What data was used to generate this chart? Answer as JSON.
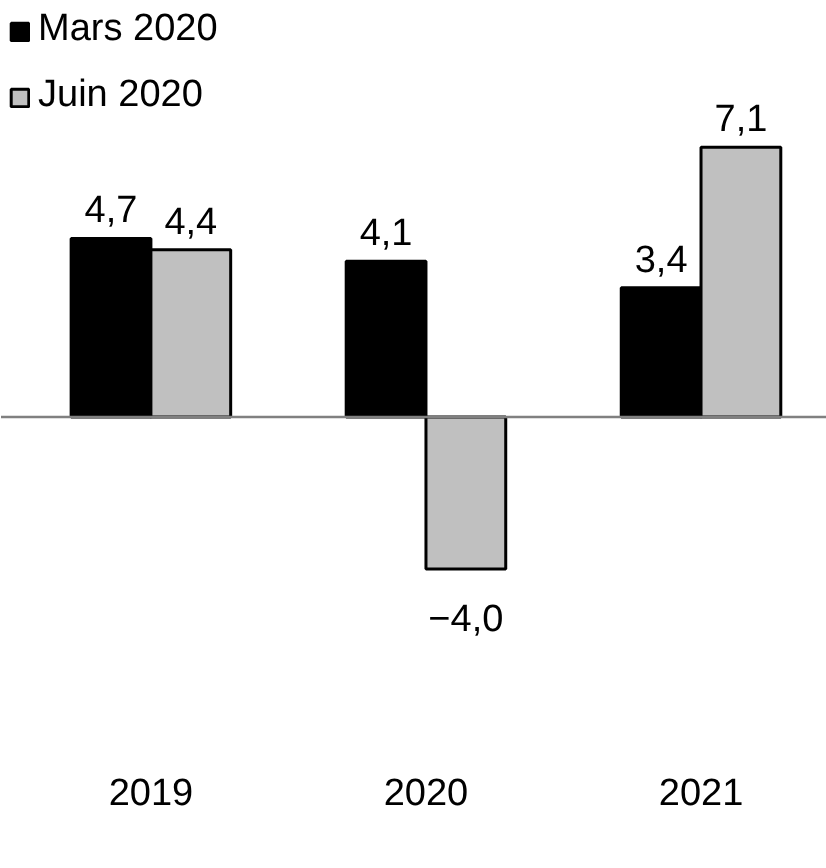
{
  "chart_data": {
    "type": "bar",
    "categories": [
      "2019",
      "2020",
      "2021"
    ],
    "series": [
      {
        "name": "Mars 2020",
        "color": "#000000",
        "values": [
          4.7,
          4.1,
          3.4
        ],
        "value_labels": [
          "4,7",
          "4,1",
          "3,4"
        ]
      },
      {
        "name": "Juin 2020",
        "color": "#c0c0c0",
        "values": [
          4.4,
          -4.0,
          7.1
        ],
        "value_labels": [
          "4,4",
          "−4,0",
          "7,1"
        ]
      }
    ],
    "legend": "top left",
    "tick_labels": "x"
  }
}
